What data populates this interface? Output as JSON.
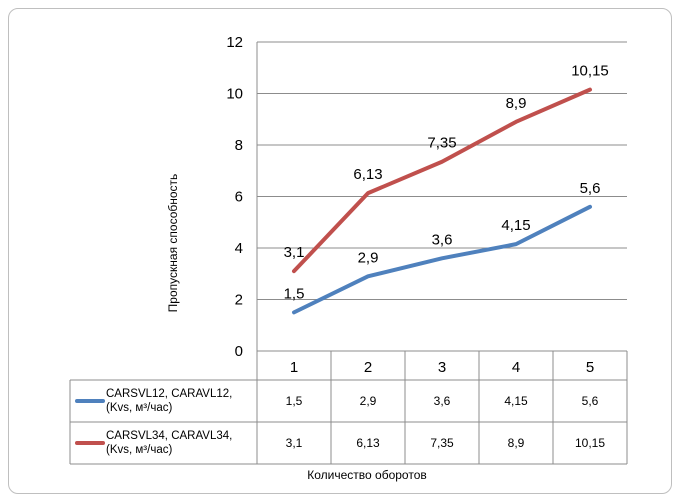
{
  "chart_data": {
    "type": "line",
    "categories": [
      "1",
      "2",
      "3",
      "4",
      "5"
    ],
    "xlabel": "Количество оборотов",
    "ylabel": "Пропускная способность",
    "ylim": [
      0,
      12
    ],
    "yticks": [
      "0",
      "2",
      "4",
      "6",
      "8",
      "10",
      "12"
    ],
    "grid": true,
    "legend": "data-table-below",
    "series": [
      {
        "name_lines": [
          "CARSVL12, CARAVL12,",
          "(Kvs, м³/час)"
        ],
        "color": "#4f81bd",
        "values": [
          1.5,
          2.9,
          3.6,
          4.15,
          5.6
        ],
        "labels": [
          "1,5",
          "2,9",
          "3,6",
          "4,15",
          "5,6"
        ]
      },
      {
        "name_lines": [
          "CARSVL34, CARAVL34,",
          "(Kvs, м³/час)"
        ],
        "color": "#c0504d",
        "values": [
          3.1,
          6.13,
          7.35,
          8.9,
          10.15
        ],
        "labels": [
          "3,1",
          "6,13",
          "7,35",
          "8,9",
          "10,15"
        ]
      }
    ]
  }
}
